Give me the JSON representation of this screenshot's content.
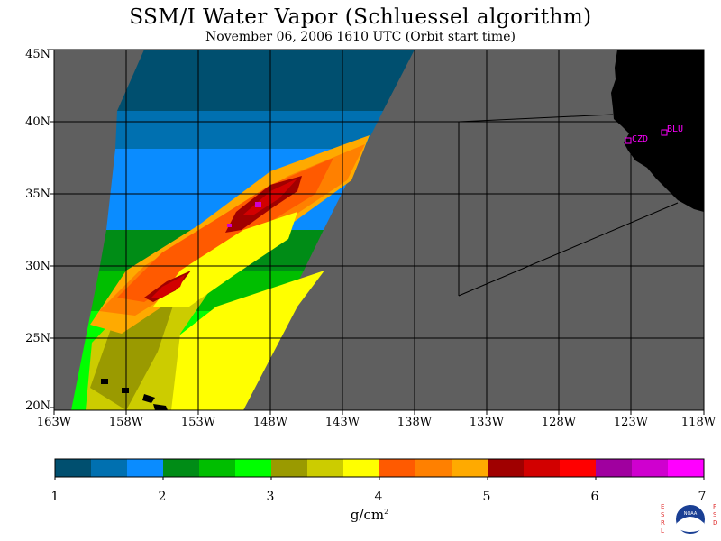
{
  "header": {
    "title": "SSM/I Water Vapor (Schluessel algorithm)",
    "subtitle": "November 06, 2006  1610 UTC  (Orbit start time)"
  },
  "axes": {
    "lat_labels": [
      "45N",
      "40N",
      "35N",
      "30N",
      "25N",
      "20N"
    ],
    "lon_labels": [
      "163W",
      "158W",
      "153W",
      "148W",
      "143W",
      "138W",
      "133W",
      "128W",
      "123W",
      "118W"
    ]
  },
  "stations": [
    {
      "label": "CZD"
    },
    {
      "label": "BLU"
    }
  ],
  "colorbar": {
    "tick_labels": [
      "1",
      "2",
      "3",
      "4",
      "5",
      "6",
      "7"
    ],
    "units": "g/cm",
    "units_sup": "2",
    "colors": [
      "#004f6f",
      "#0070b0",
      "#0a8cff",
      "#008c16",
      "#00be00",
      "#00ff00",
      "#9a9a00",
      "#cccc00",
      "#ffff00",
      "#ff5a00",
      "#ff8000",
      "#ffaa00",
      "#a00000",
      "#d20000",
      "#ff0000",
      "#a0009f",
      "#cf00cf",
      "#ff00ff"
    ]
  },
  "logo": {
    "left_text": "ESRL",
    "right_text": "PSD",
    "center_text": "NOAA"
  },
  "colors": {
    "ocean_nodata": "#5f5f5f",
    "land": "#000000",
    "station": "#ff00ff"
  }
}
